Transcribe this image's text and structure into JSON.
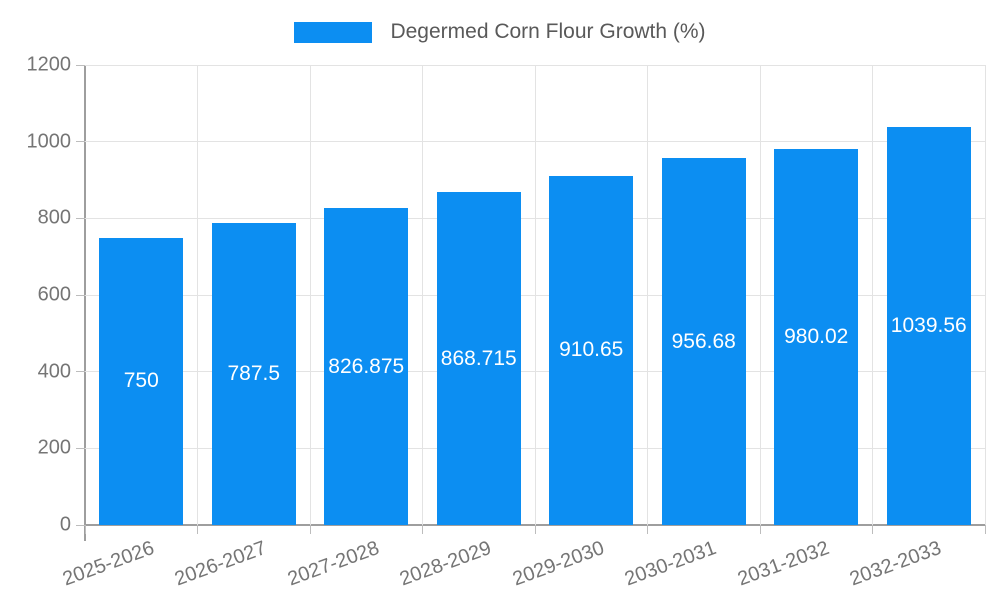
{
  "chart_data": {
    "type": "bar",
    "title": "Degermed Corn Flour Growth (%)",
    "categories": [
      "2025-2026",
      "2026-2027",
      "2027-2028",
      "2028-2029",
      "2029-2030",
      "2030-2031",
      "2031-2032",
      "2032-2033"
    ],
    "values": [
      750,
      787.5,
      826.875,
      868.715,
      910.65,
      956.68,
      980.02,
      1039.56
    ],
    "value_labels": [
      "750",
      "787.5",
      "826.875",
      "868.715",
      "910.65",
      "956.68",
      "980.02",
      "1039.56"
    ],
    "xlabel": "",
    "ylabel": "",
    "ylim": [
      0,
      1200
    ],
    "yticks": [
      0,
      200,
      400,
      600,
      800,
      1000,
      1200
    ],
    "grid": true,
    "legend_position": "top-center",
    "colors": {
      "bar": "#0c8ef2",
      "bar_value_text": "#ffffff",
      "grid": "#e3e3e3",
      "axis": "#9e9e9e",
      "tick_text": "#757575",
      "legend_text": "#595959"
    }
  }
}
